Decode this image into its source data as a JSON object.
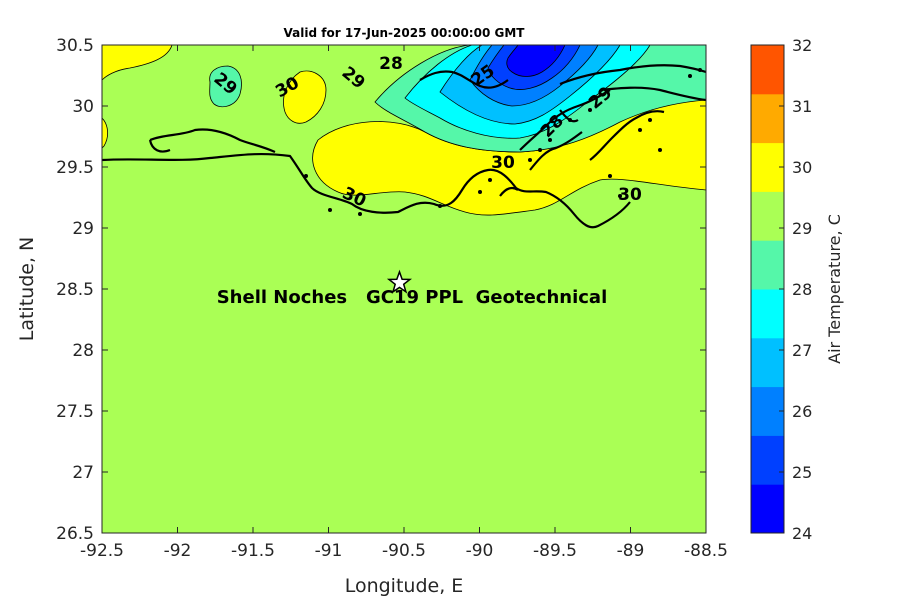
{
  "title": "Valid for 17-Jun-2025 00:00:00 GMT",
  "x_label": "Longitude, E",
  "y_label": "Latitude, N",
  "x_ticks": [
    "-92.5",
    "-92",
    "-91.5",
    "-91",
    "-90.5",
    "-90",
    "-89.5",
    "-89",
    "-88.5"
  ],
  "y_ticks": [
    "30.5",
    "30",
    "29.5",
    "29",
    "28.5",
    "28",
    "27.5",
    "27",
    "26.5"
  ],
  "annotation": "Shell Noches   GC19 PPL  Geotechnical",
  "site_marker": {
    "lon": -90.53,
    "lat": 28.55,
    "icon": "star-icon"
  },
  "contour_labels": [
    "29",
    "30",
    "29",
    "28",
    "30",
    "30",
    "30",
    "29",
    "28",
    "25"
  ],
  "colorbar": {
    "label": "Air Temperature, C",
    "ticks": [
      "32",
      "31",
      "30",
      "29",
      "28",
      "27",
      "26",
      "25",
      "24"
    ],
    "colors": [
      "#0000ff",
      "#0040ff",
      "#0080ff",
      "#00c0ff",
      "#00ffff",
      "#55f7a9",
      "#aaff55",
      "#ffff00",
      "#ffaa00",
      "#ff5500"
    ]
  },
  "chart_data": {
    "type": "heatmap",
    "title": "Valid for 17-Jun-2025 00:00:00 GMT",
    "xlabel": "Longitude, E",
    "ylabel": "Latitude, N",
    "xlim": [
      -92.5,
      -88.5
    ],
    "ylim": [
      26.5,
      30.5
    ],
    "clim": [
      24,
      32
    ],
    "colorbar_label": "Air Temperature, C",
    "contour_levels_labeled": [
      25,
      28,
      29,
      30
    ],
    "dominant_value_range": [
      29,
      30
    ],
    "marker": {
      "name": "Shell Noches GC19 PPL Geotechnical",
      "lon": -90.53,
      "lat": 28.55
    }
  }
}
